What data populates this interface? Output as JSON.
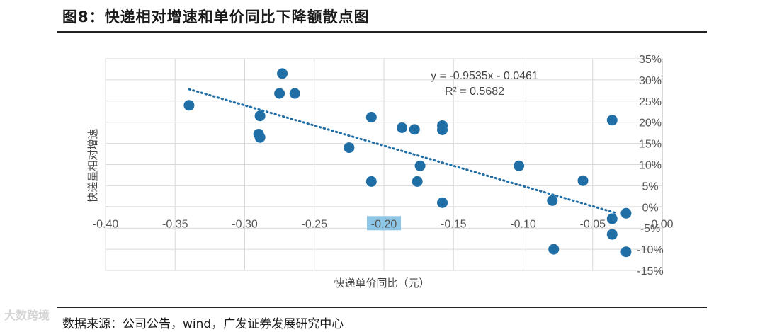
{
  "figure": {
    "title": "图8：快递相对增速和单价同比下降额散点图",
    "source": "数据来源：公司公告，wind，广发证券发展研究中心",
    "watermark": "大数跨境"
  },
  "chart_data": {
    "type": "scatter",
    "title": "",
    "xlabel": "快递单价同比（元）",
    "ylabel": "快递量相对增速",
    "xlim": [
      -0.4,
      0.0
    ],
    "ylim": [
      -15,
      35
    ],
    "x_ticks": [
      "-0.40",
      "-0.35",
      "-0.30",
      "-0.25",
      "-0.20",
      "-0.15",
      "-0.10",
      "-0.05",
      "0.00"
    ],
    "x_tick_values": [
      -0.4,
      -0.35,
      -0.3,
      -0.25,
      -0.2,
      -0.15,
      -0.1,
      -0.05,
      0.0
    ],
    "y_ticks": [
      "35%",
      "30%",
      "25%",
      "20%",
      "15%",
      "10%",
      "5%",
      "0%",
      "-5%",
      "-10%",
      "-15%"
    ],
    "y_tick_values": [
      35,
      30,
      25,
      20,
      15,
      10,
      5,
      0,
      -5,
      -10,
      -15
    ],
    "highlighted_tick": "-0.20",
    "grid": true,
    "point_color": "#1f6ea6",
    "trend_color": "#1f6ea6",
    "highlight_color": "#8ec6e8",
    "points": [
      {
        "x": -0.34,
        "y": 24
      },
      {
        "x": -0.273,
        "y": 31.5
      },
      {
        "x": -0.275,
        "y": 26.8
      },
      {
        "x": -0.264,
        "y": 26.8
      },
      {
        "x": -0.289,
        "y": 21.5
      },
      {
        "x": -0.29,
        "y": 17.2
      },
      {
        "x": -0.289,
        "y": 16.4
      },
      {
        "x": -0.225,
        "y": 14
      },
      {
        "x": -0.209,
        "y": 21.2
      },
      {
        "x": -0.209,
        "y": 6
      },
      {
        "x": -0.187,
        "y": 18.7
      },
      {
        "x": -0.178,
        "y": 18.3
      },
      {
        "x": -0.158,
        "y": 19.2
      },
      {
        "x": -0.158,
        "y": 18.2
      },
      {
        "x": -0.174,
        "y": 9.7
      },
      {
        "x": -0.176,
        "y": 6
      },
      {
        "x": -0.158,
        "y": 1
      },
      {
        "x": -0.103,
        "y": 9.7
      },
      {
        "x": -0.079,
        "y": 1.5
      },
      {
        "x": -0.057,
        "y": 6.2
      },
      {
        "x": -0.078,
        "y": -10
      },
      {
        "x": -0.036,
        "y": 20.5
      },
      {
        "x": -0.036,
        "y": -2.8
      },
      {
        "x": -0.036,
        "y": -6.5
      },
      {
        "x": -0.026,
        "y": -1.5
      },
      {
        "x": -0.026,
        "y": -10.6
      }
    ],
    "trendline": {
      "equation": "y = -0.9535x - 0.0461",
      "r_squared": "R² = 0.5682",
      "x_range": [
        -0.34,
        -0.033
      ]
    }
  }
}
